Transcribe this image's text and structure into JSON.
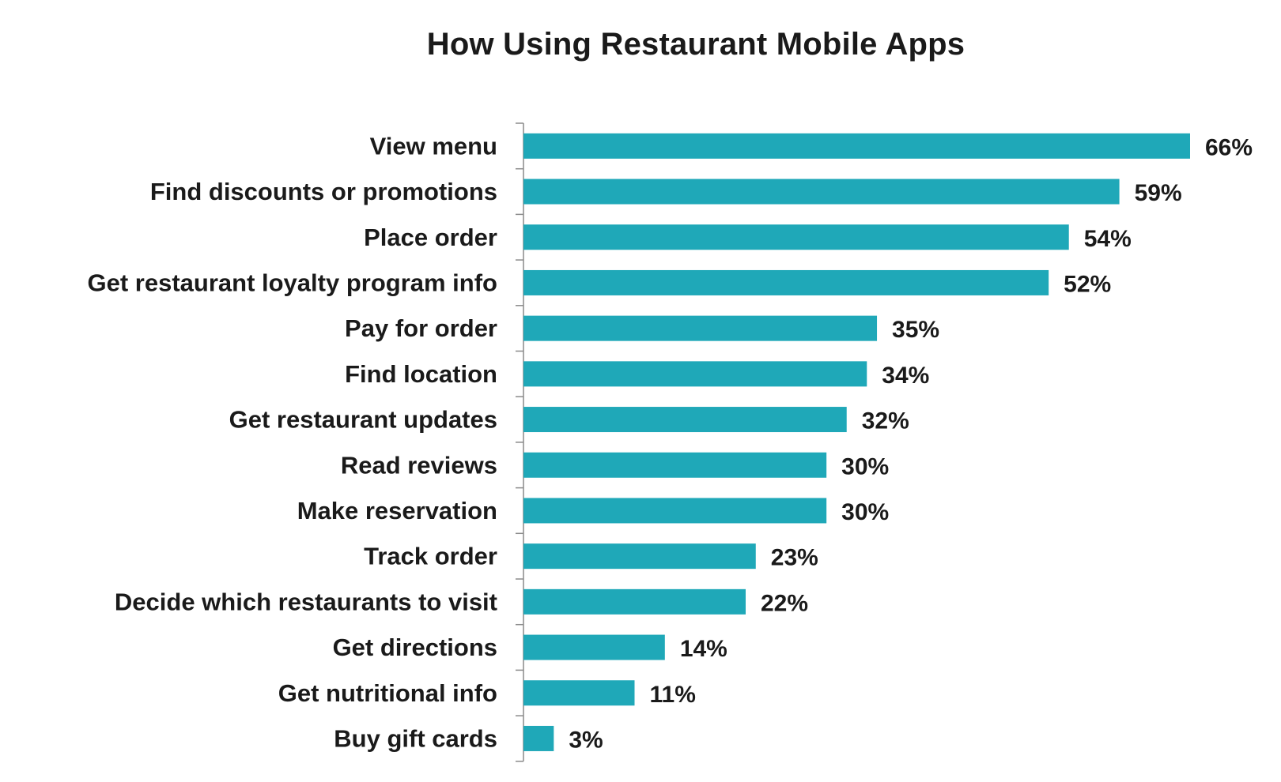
{
  "chart_data": {
    "type": "bar",
    "orientation": "horizontal",
    "title": "How Using Restaurant Mobile Apps",
    "xlabel": "",
    "ylabel": "",
    "categories": [
      "View menu",
      "Find discounts or promotions",
      "Place order",
      "Get restaurant loyalty program info",
      "Pay for order",
      "Find location",
      "Get restaurant updates",
      "Read reviews",
      "Make reservation",
      "Track order",
      "Decide which restaurants to visit",
      "Get directions",
      "Get nutritional info",
      "Buy gift cards"
    ],
    "values": [
      66,
      59,
      54,
      52,
      35,
      34,
      32,
      30,
      30,
      23,
      22,
      14,
      11,
      3
    ],
    "value_labels": [
      "66%",
      "59%",
      "54%",
      "52%",
      "35%",
      "34%",
      "32%",
      "30%",
      "30%",
      "23%",
      "22%",
      "14%",
      "11%",
      "3%"
    ],
    "unit": "%",
    "xlim": [
      0,
      66
    ],
    "grid": false,
    "legend": "none",
    "bar_color": "#1fa8b8"
  }
}
